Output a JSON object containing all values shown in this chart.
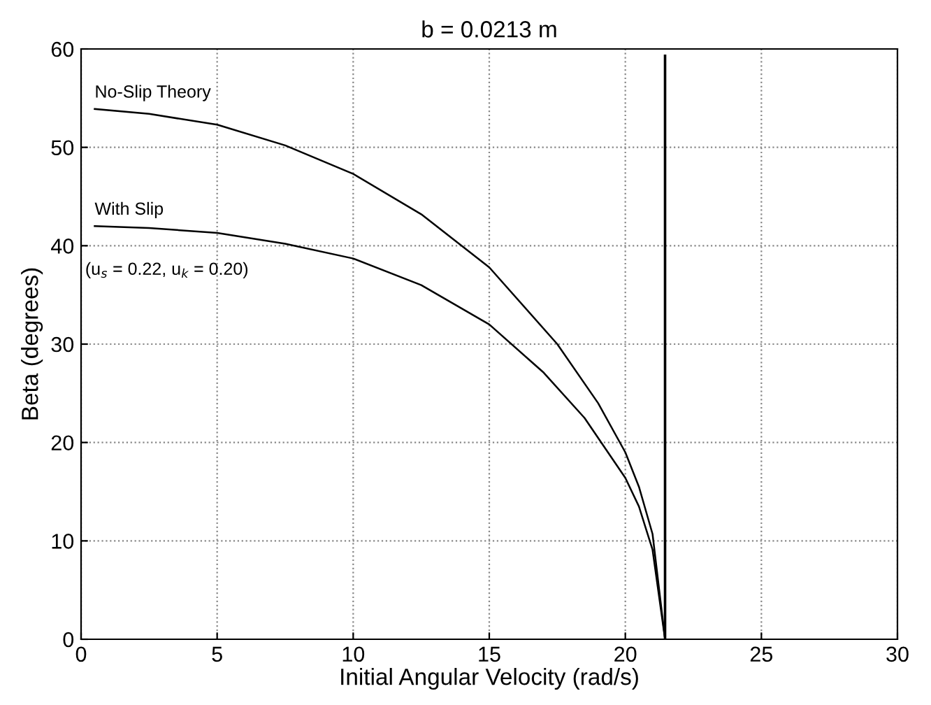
{
  "chart_data": {
    "type": "line",
    "title": "b = 0.0213 m",
    "xlabel": "Initial Angular Velocity (rad/s)",
    "ylabel": "Beta (degrees)",
    "xlim": [
      0,
      30
    ],
    "ylim": [
      0,
      60
    ],
    "xticks": [
      0,
      5,
      10,
      15,
      20,
      25,
      30
    ],
    "yticks": [
      0,
      10,
      20,
      30,
      40,
      50,
      60
    ],
    "grid": true,
    "line_style": "solid",
    "marker": "none",
    "annotations": [
      "(u$_{s}$ = 0.22, u$_{k}$ = 0.20)"
    ],
    "series": [
      {
        "name": "No-Slip Theory",
        "color": "#000000",
        "x": [
          0.5,
          2.5,
          5,
          7.5,
          10,
          12.5,
          15,
          17.5,
          19,
          20,
          20.5,
          21,
          21.46
        ],
        "values": [
          53.9,
          53.4,
          52.3,
          50.2,
          47.3,
          43.2,
          37.8,
          30,
          24,
          19,
          15.5,
          10.7,
          0
        ]
      },
      {
        "name": "With Slip",
        "color": "#000000",
        "x": [
          0.5,
          2.5,
          5,
          7.5,
          10,
          12.5,
          15,
          17,
          18.5,
          20,
          20.5,
          21,
          21.46
        ],
        "values": [
          42,
          41.8,
          41.3,
          40.2,
          38.7,
          36,
          32,
          27.1,
          22.5,
          16.4,
          13.5,
          9.1,
          0
        ]
      },
      {
        "color": "#000000",
        "x": [
          21.46,
          21.46
        ],
        "values": [
          0,
          59.3
        ]
      }
    ]
  }
}
